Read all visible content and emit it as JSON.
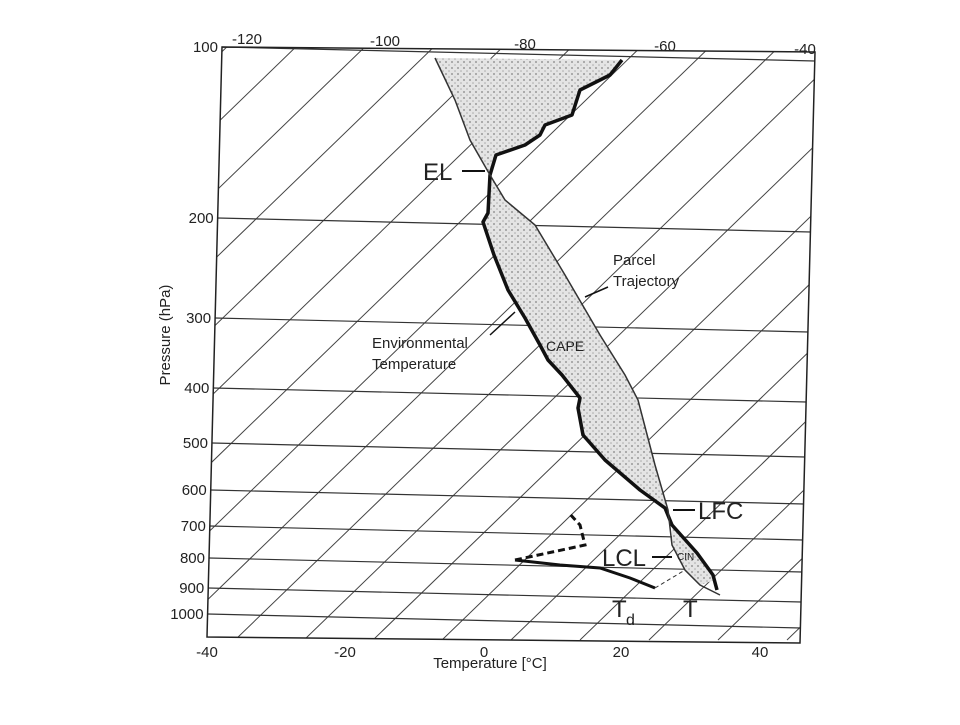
{
  "figure": {
    "y_axis_title": "Pressure (hPa)",
    "x_axis_title": "Temperature [°C]",
    "pressure_labels": [
      100,
      200,
      300,
      400,
      500,
      600,
      700,
      800,
      900,
      1000
    ],
    "bottom_temperature_labels": [
      -40,
      -20,
      0,
      20,
      40
    ],
    "top_temperature_labels": [
      -120,
      -100,
      -80,
      -60,
      -40
    ],
    "annotations": {
      "el": "EL",
      "lfc": "LFC",
      "lcl": "LCL",
      "cin": "CIN",
      "cape": "CAPE",
      "parcel": [
        "Parcel",
        "Trajectory"
      ],
      "environment": [
        "Environmental",
        "Temperature"
      ],
      "dewpoint_base": "T",
      "dewpoint_sub": "d",
      "temperature": "T"
    }
  }
}
